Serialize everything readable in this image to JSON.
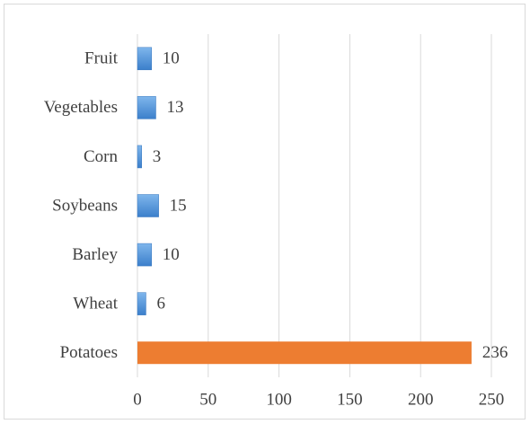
{
  "chart_data": {
    "type": "barh",
    "categories": [
      "Fruit",
      "Vegetables",
      "Corn",
      "Soybeans",
      "Barley",
      "Wheat",
      "Potatoes"
    ],
    "values": [
      10,
      13,
      3,
      15,
      10,
      6,
      236
    ],
    "colors": [
      "#4a90d9",
      "#4a90d9",
      "#4a90d9",
      "#4a90d9",
      "#4a90d9",
      "#4a90d9",
      "#ed7d31"
    ],
    "xlim": [
      0,
      250
    ],
    "xticks": [
      0,
      50,
      100,
      150,
      200,
      250
    ],
    "grid": true
  }
}
